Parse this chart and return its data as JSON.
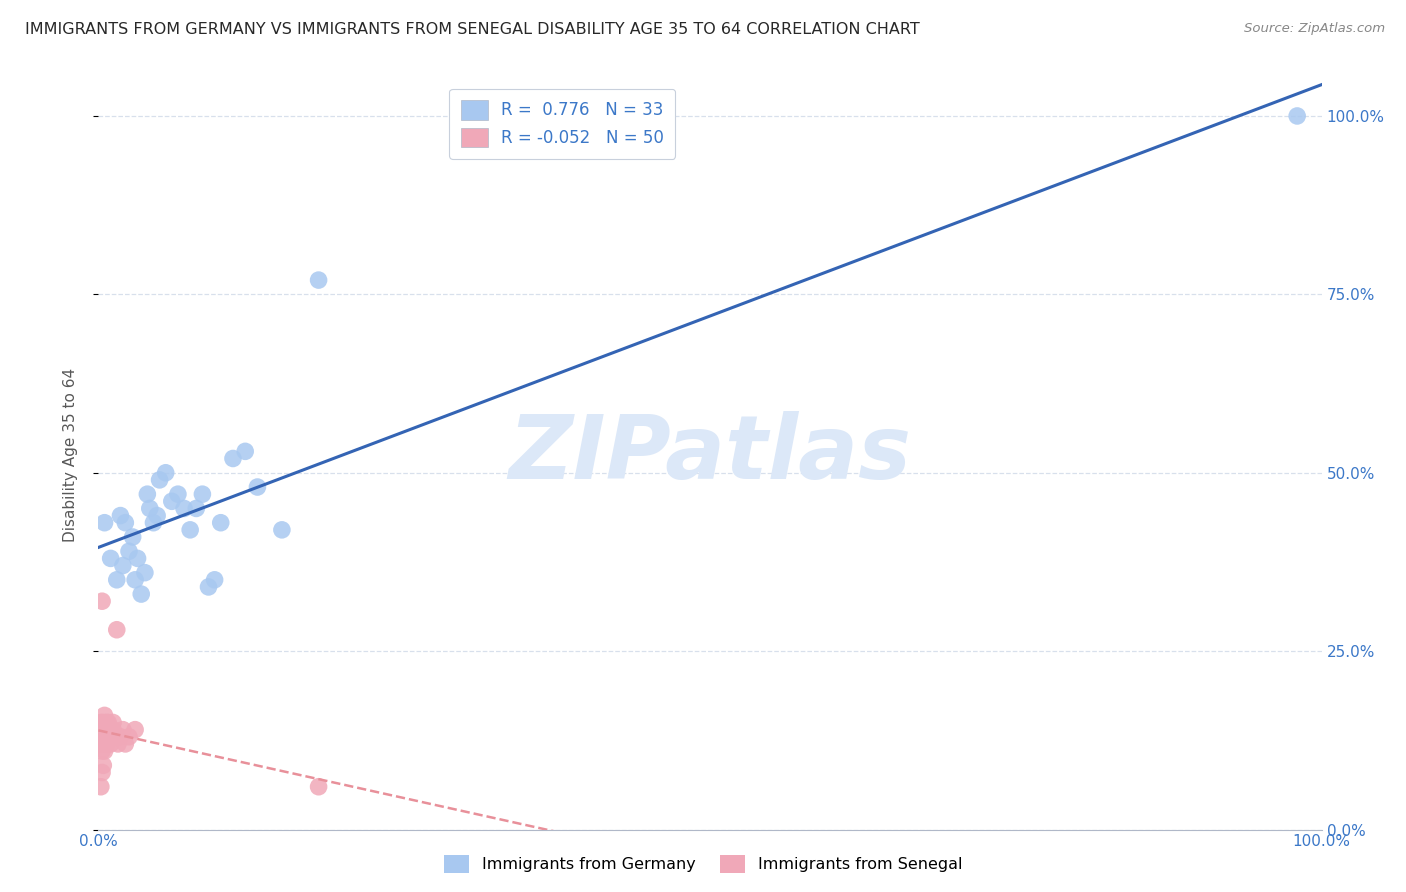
{
  "title": "IMMIGRANTS FROM GERMANY VS IMMIGRANTS FROM SENEGAL DISABILITY AGE 35 TO 64 CORRELATION CHART",
  "source": "Source: ZipAtlas.com",
  "ylabel": "Disability Age 35 to 64",
  "legend_labels": [
    "Immigrants from Germany",
    "Immigrants from Senegal"
  ],
  "r_germany": 0.776,
  "n_germany": 33,
  "r_senegal": -0.052,
  "n_senegal": 50,
  "germany_color": "#a8c8f0",
  "senegal_color": "#f0a8b8",
  "germany_line_color": "#3464b4",
  "senegal_line_color": "#e8909a",
  "background_color": "#ffffff",
  "grid_color": "#d8e0ec",
  "title_color": "#282828",
  "watermark_text": "ZIPatlas",
  "watermark_color": "#dce8f8",
  "axis_label_color": "#3c78c8",
  "germany_scatter_x": [
    0.005,
    0.01,
    0.015,
    0.018,
    0.02,
    0.022,
    0.025,
    0.028,
    0.03,
    0.032,
    0.035,
    0.038,
    0.04,
    0.042,
    0.045,
    0.048,
    0.05,
    0.055,
    0.06,
    0.065,
    0.07,
    0.075,
    0.08,
    0.085,
    0.09,
    0.095,
    0.1,
    0.11,
    0.12,
    0.13,
    0.15,
    0.18,
    0.98
  ],
  "germany_scatter_y": [
    0.43,
    0.38,
    0.35,
    0.44,
    0.37,
    0.43,
    0.39,
    0.41,
    0.35,
    0.38,
    0.33,
    0.36,
    0.47,
    0.45,
    0.43,
    0.44,
    0.49,
    0.5,
    0.46,
    0.47,
    0.45,
    0.42,
    0.45,
    0.47,
    0.34,
    0.35,
    0.43,
    0.52,
    0.53,
    0.48,
    0.42,
    0.77,
    1.0
  ],
  "senegal_scatter_x": [
    0.001,
    0.001,
    0.001,
    0.002,
    0.002,
    0.002,
    0.002,
    0.003,
    0.003,
    0.003,
    0.003,
    0.003,
    0.004,
    0.004,
    0.004,
    0.005,
    0.005,
    0.005,
    0.005,
    0.005,
    0.005,
    0.006,
    0.006,
    0.006,
    0.007,
    0.007,
    0.007,
    0.008,
    0.008,
    0.008,
    0.009,
    0.009,
    0.01,
    0.01,
    0.011,
    0.012,
    0.012,
    0.013,
    0.015,
    0.016,
    0.018,
    0.02,
    0.022,
    0.025,
    0.03,
    0.002,
    0.003,
    0.004,
    0.18,
    0.003
  ],
  "senegal_scatter_y": [
    0.13,
    0.14,
    0.12,
    0.15,
    0.14,
    0.13,
    0.12,
    0.14,
    0.13,
    0.12,
    0.11,
    0.15,
    0.13,
    0.12,
    0.14,
    0.13,
    0.15,
    0.12,
    0.14,
    0.11,
    0.16,
    0.13,
    0.14,
    0.12,
    0.15,
    0.13,
    0.12,
    0.14,
    0.13,
    0.15,
    0.13,
    0.14,
    0.12,
    0.14,
    0.13,
    0.14,
    0.15,
    0.13,
    0.28,
    0.12,
    0.13,
    0.14,
    0.12,
    0.13,
    0.14,
    0.06,
    0.08,
    0.09,
    0.06,
    0.32
  ],
  "xlim": [
    0.0,
    1.0
  ],
  "ylim": [
    0.0,
    1.05
  ],
  "xticks": [
    0.0,
    1.0
  ],
  "yticks": [
    0.0,
    0.25,
    0.5,
    0.75,
    1.0
  ],
  "xtick_labels": [
    "0.0%",
    "100.0%"
  ],
  "ytick_labels": [
    "0.0%",
    "25.0%",
    "50.0%",
    "75.0%",
    "100.0%"
  ]
}
